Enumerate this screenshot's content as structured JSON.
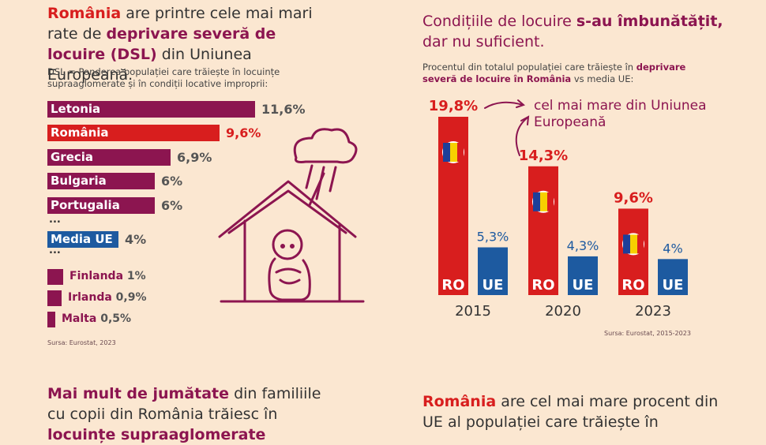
{
  "left_headline": {
    "part1": "România",
    "part2": " are printre cele mai mari rate de ",
    "part3": "deprivare severă de locuire (DSL)",
    "part4": " din Uniunea Europeană."
  },
  "definition": "DSL = Ponderea populației care trăiește în locuințe supraaglomerate și în condiții locative improprii:",
  "left_source": "Sursa: Eurostat, 2023",
  "dots": "...",
  "right_headline": {
    "part1": "Condițiile de locuire ",
    "part2": "s-au îmbunătățit,",
    "part3": " dar nu suficient."
  },
  "right_subtitle": {
    "part1": "Procentul din totalul populației care trăiește în ",
    "part2": "deprivare severă de locuire în România",
    "part3": " vs media UE:"
  },
  "annotation": "cel mai mare din Uniunea Europeană",
  "right_source": "Sursa: Eurostat, 2015-2023",
  "bottom_left": {
    "part1": "Mai mult de jumătate",
    "part2": " din familiile cu copii din România trăiesc în ",
    "part3": "locuințe supraaglomerate"
  },
  "bottom_right": {
    "part1": "România",
    "part2": " are cel mai mare procent din UE al populației care trăiește în"
  },
  "colors": {
    "plum": "#8c1550",
    "red": "#d81e1e",
    "blue": "#1d5aa0",
    "background": "#fbe7d1"
  },
  "chart_data": [
    {
      "type": "bar",
      "orientation": "horizontal",
      "title": "Deprivare severă de locuire (DSL), 2023",
      "categories": [
        "Letonia",
        "România",
        "Grecia",
        "Bulgaria",
        "Portugalia",
        "Media UE"
      ],
      "values": [
        11.6,
        9.6,
        6.9,
        6,
        6,
        4
      ],
      "value_labels": [
        "11,6%",
        "9,6%",
        "6,9%",
        "6%",
        "6%",
        "4%"
      ],
      "small_categories": [
        "Finlanda",
        "Irlanda",
        "Malta"
      ],
      "small_values": [
        1,
        0.9,
        0.5
      ],
      "small_value_labels": [
        "1%",
        "0,9%",
        "0,5%"
      ],
      "unit": "%"
    },
    {
      "type": "bar",
      "title": "DSL România vs media UE",
      "categories": [
        "2015",
        "2020",
        "2023"
      ],
      "series": [
        {
          "name": "RO",
          "values": [
            19.8,
            14.3,
            9.6
          ],
          "labels": [
            "19,8%",
            "14,3%",
            "9,6%"
          ]
        },
        {
          "name": "UE",
          "values": [
            5.3,
            4.3,
            4
          ],
          "labels": [
            "5,3%",
            "4,3%",
            "4%"
          ]
        }
      ],
      "unit": "%"
    }
  ]
}
